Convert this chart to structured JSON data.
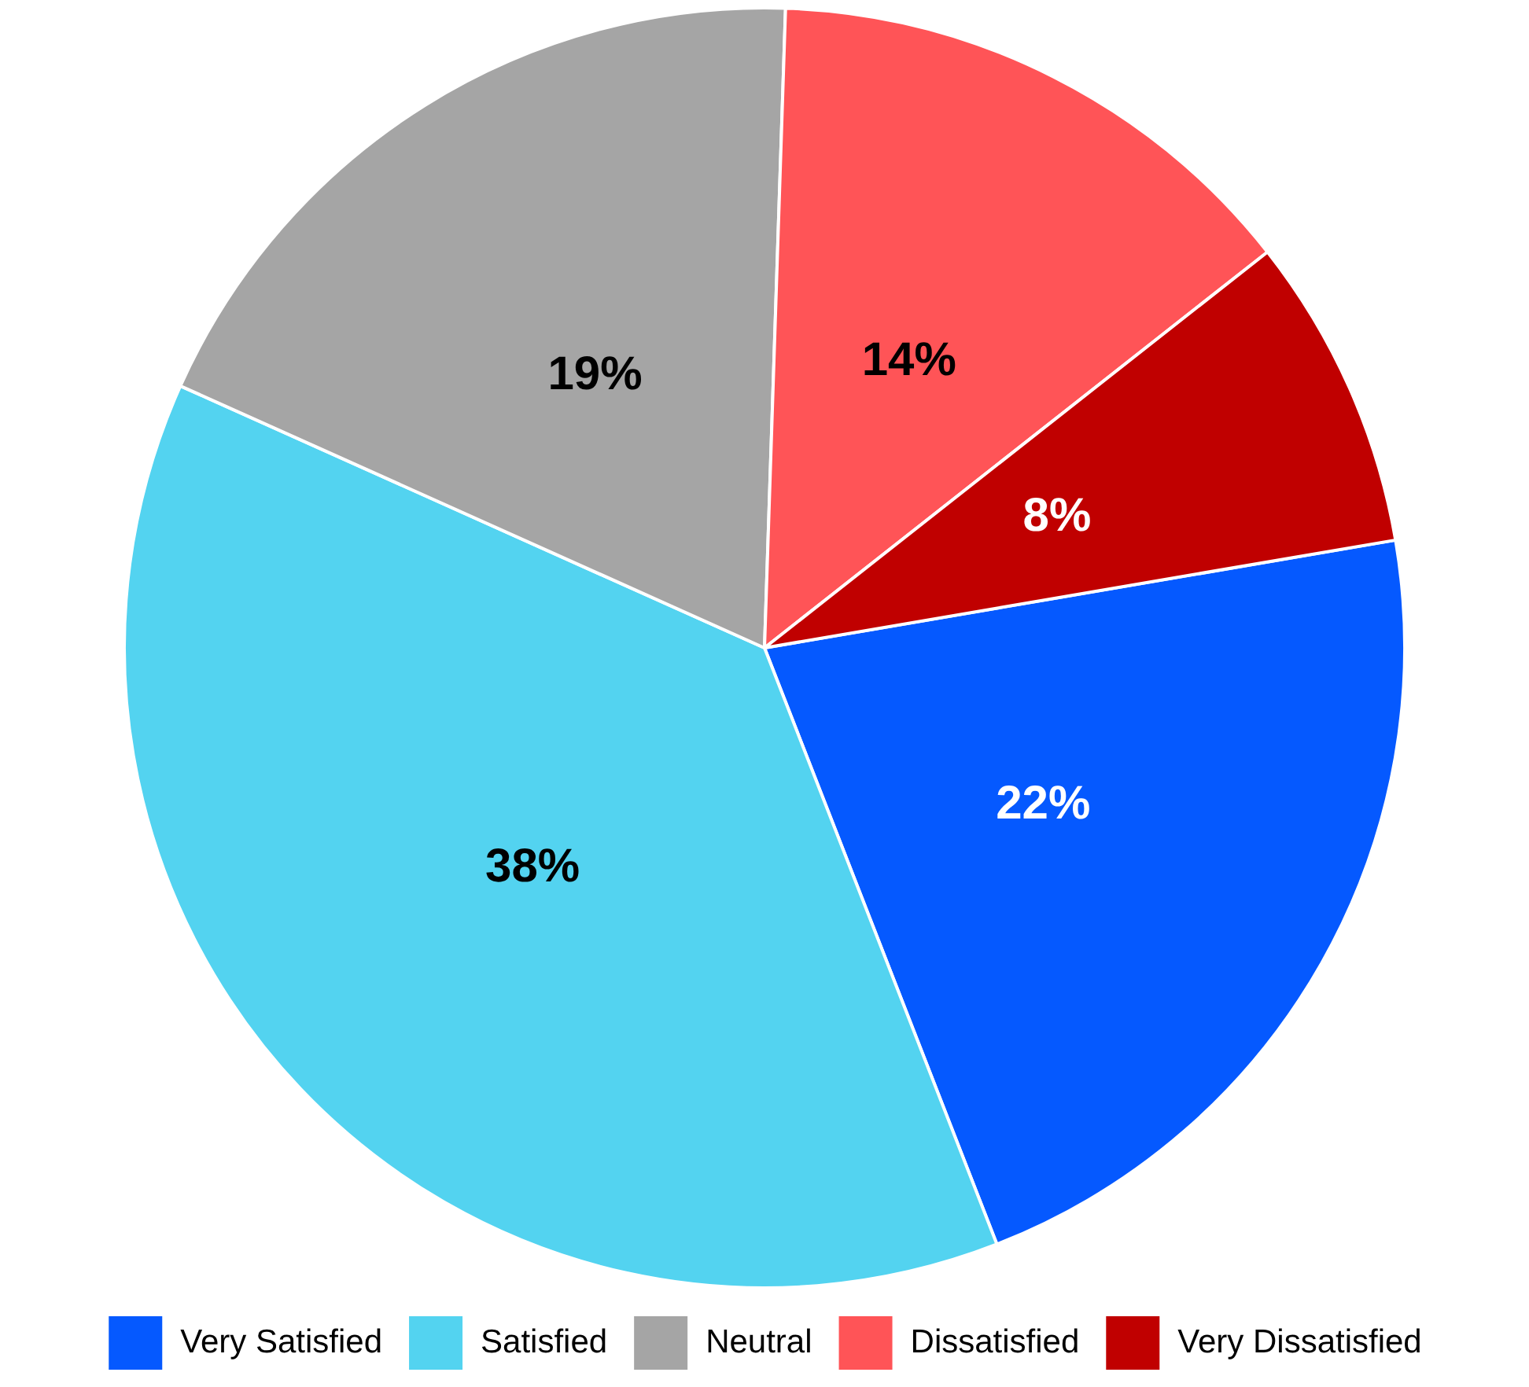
{
  "chart_data": {
    "type": "pie",
    "categories": [
      "Very Satisfied",
      "Satisfied",
      "Neutral",
      "Dissatisfied",
      "Very Dissatisfied"
    ],
    "values": [
      22,
      38,
      19,
      14,
      8
    ],
    "value_labels": [
      "22%",
      "38%",
      "19%",
      "14%",
      "8%"
    ],
    "colors": [
      "#0559ff",
      "#53d3f0",
      "#a5a5a5",
      "#ff5457",
      "#c00000"
    ],
    "legend": "bottom"
  }
}
